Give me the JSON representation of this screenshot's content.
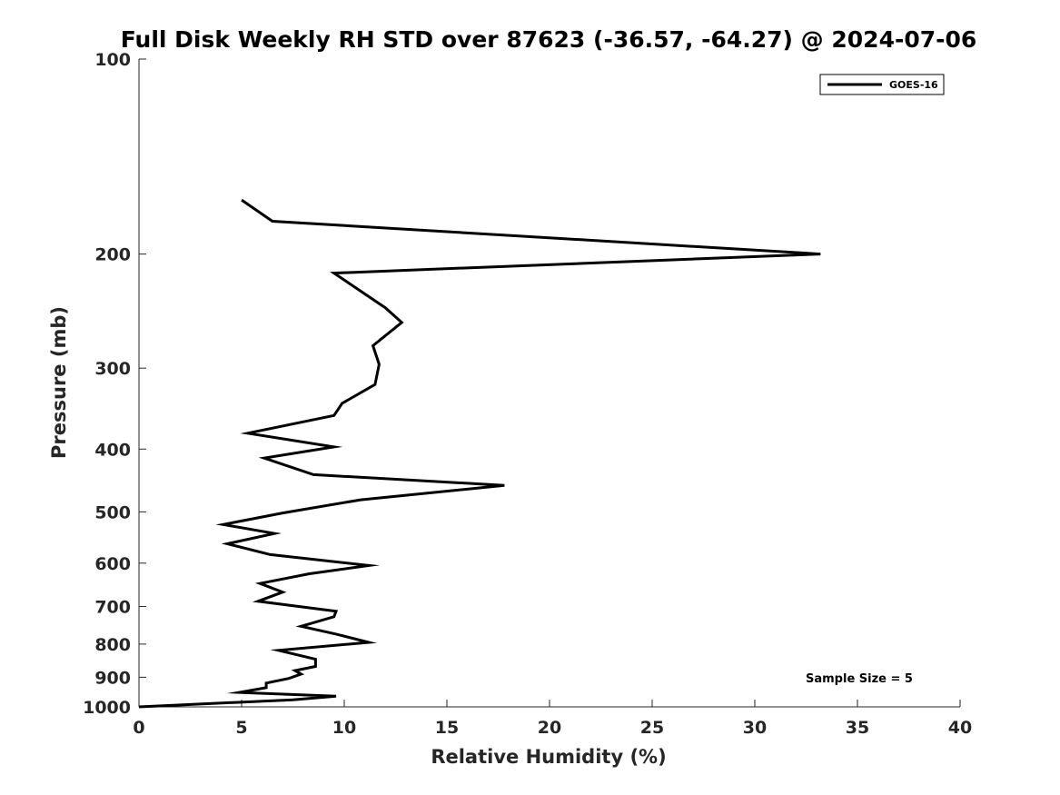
{
  "chart_data": {
    "type": "line",
    "title": "Full Disk Weekly RH STD over 87623 (-36.57, -64.27) @ 2024-07-06",
    "xlabel": "Relative Humidity (%)",
    "ylabel": "Pressure (mb)",
    "xlim": [
      0,
      40
    ],
    "ylim": [
      100,
      1000
    ],
    "y_scale": "log",
    "y_reversed": true,
    "x_ticks": [
      0,
      5,
      10,
      15,
      20,
      25,
      30,
      35,
      40
    ],
    "y_ticks": [
      100,
      200,
      300,
      400,
      500,
      600,
      700,
      800,
      900,
      1000
    ],
    "grid": false,
    "legend_placement": "top-right",
    "annotation": "Sample Size = 5",
    "series": [
      {
        "name": "GOES-16",
        "color": "#000000",
        "points": [
          [
            5.0,
            165
          ],
          [
            6.5,
            178
          ],
          [
            33.2,
            200
          ],
          [
            9.5,
            214
          ],
          [
            12.0,
            242
          ],
          [
            12.8,
            255
          ],
          [
            11.4,
            277
          ],
          [
            11.7,
            296
          ],
          [
            11.5,
            318
          ],
          [
            9.9,
            340
          ],
          [
            9.5,
            355
          ],
          [
            5.3,
            378
          ],
          [
            9.5,
            397
          ],
          [
            6.1,
            413
          ],
          [
            8.5,
            438
          ],
          [
            17.8,
            455
          ],
          [
            10.8,
            479
          ],
          [
            7.0,
            502
          ],
          [
            4.1,
            523
          ],
          [
            6.6,
            540
          ],
          [
            4.3,
            560
          ],
          [
            6.4,
            582
          ],
          [
            11.2,
            605
          ],
          [
            8.3,
            623
          ],
          [
            5.9,
            645
          ],
          [
            7.0,
            665
          ],
          [
            5.8,
            687
          ],
          [
            9.6,
            712
          ],
          [
            9.5,
            726
          ],
          [
            7.9,
            751
          ],
          [
            9.6,
            772
          ],
          [
            11.2,
            795
          ],
          [
            6.8,
            818
          ],
          [
            8.6,
            844
          ],
          [
            8.6,
            866
          ],
          [
            7.6,
            879
          ],
          [
            7.9,
            890
          ],
          [
            7.3,
            904
          ],
          [
            6.2,
            919
          ],
          [
            6.2,
            934
          ],
          [
            4.9,
            950
          ],
          [
            9.6,
            963
          ],
          [
            7.5,
            975
          ],
          [
            0.0,
            1000
          ]
        ]
      }
    ]
  }
}
